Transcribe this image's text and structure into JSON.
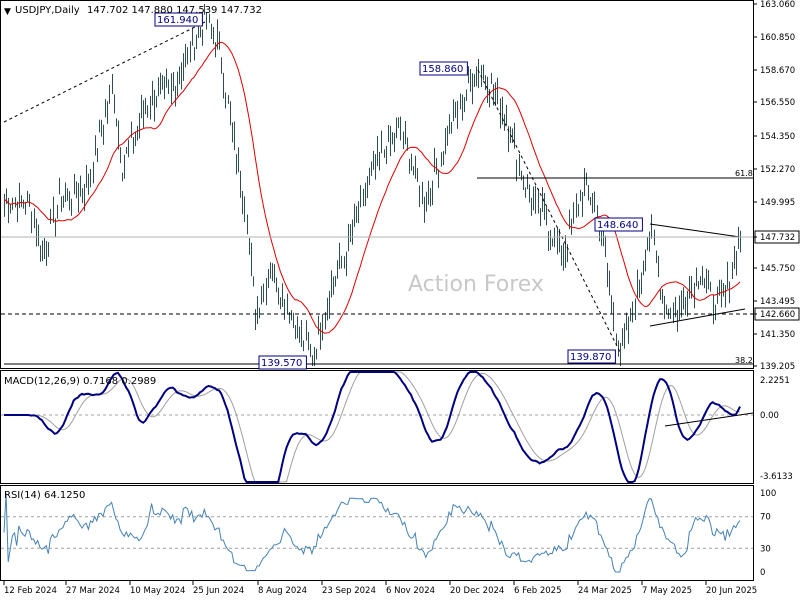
{
  "chart_data": {
    "type": "candlestick",
    "header": {
      "symbol": "USDJPY,Daily",
      "ohlc": "147.702 147.880 147.539 147.732"
    },
    "watermark": "Action Forex",
    "x_ticks": [
      "12 Feb 2024",
      "27 Mar 2024",
      "10 May 2024",
      "25 Jun 2024",
      "8 Aug 2024",
      "23 Sep 2024",
      "6 Nov 2024",
      "20 Dec 2024",
      "6 Feb 2025",
      "24 Mar 2025",
      "7 May 2025",
      "20 Jun 2025"
    ],
    "price_panel": {
      "y_ticks": [
        "163.060",
        "160.850",
        "158.670",
        "156.550",
        "154.350",
        "152.270",
        "149.995",
        "147.732",
        "145.750",
        "143.495",
        "142.660",
        "141.350",
        "139.205"
      ],
      "ylim": [
        139.2,
        163.06
      ],
      "current_price": 147.732,
      "horizontal_level": 142.66,
      "fib_labels": [
        {
          "text": "61.8",
          "price": 151.5
        },
        {
          "text": "38.2",
          "price": 139.3
        }
      ],
      "annotations": [
        {
          "text": "161.940",
          "price": 161.94
        },
        {
          "text": "139.570",
          "price": 139.57
        },
        {
          "text": "158.860",
          "price": 158.86
        },
        {
          "text": "148.640",
          "price": 148.64
        },
        {
          "text": "139.870",
          "price": 139.87
        }
      ],
      "moving_average_color": "#e00000",
      "bar_color": "#2f4f4f"
    },
    "macd_panel": {
      "title": "MACD(12,26,9) 0.7168 0.2989",
      "y_ticks": [
        "2.2251",
        "0.00",
        "-3.6133"
      ],
      "ylim": [
        -3.8,
        2.4
      ],
      "macd_color": "#000080",
      "signal_color": "#a0a0a0"
    },
    "rsi_panel": {
      "title": "RSI(14) 64.1250",
      "y_ticks": [
        "100",
        "70",
        "30",
        "0"
      ],
      "ylim": [
        0,
        100
      ],
      "levels": [
        70,
        30
      ],
      "rsi_color": "#4682b4"
    }
  }
}
